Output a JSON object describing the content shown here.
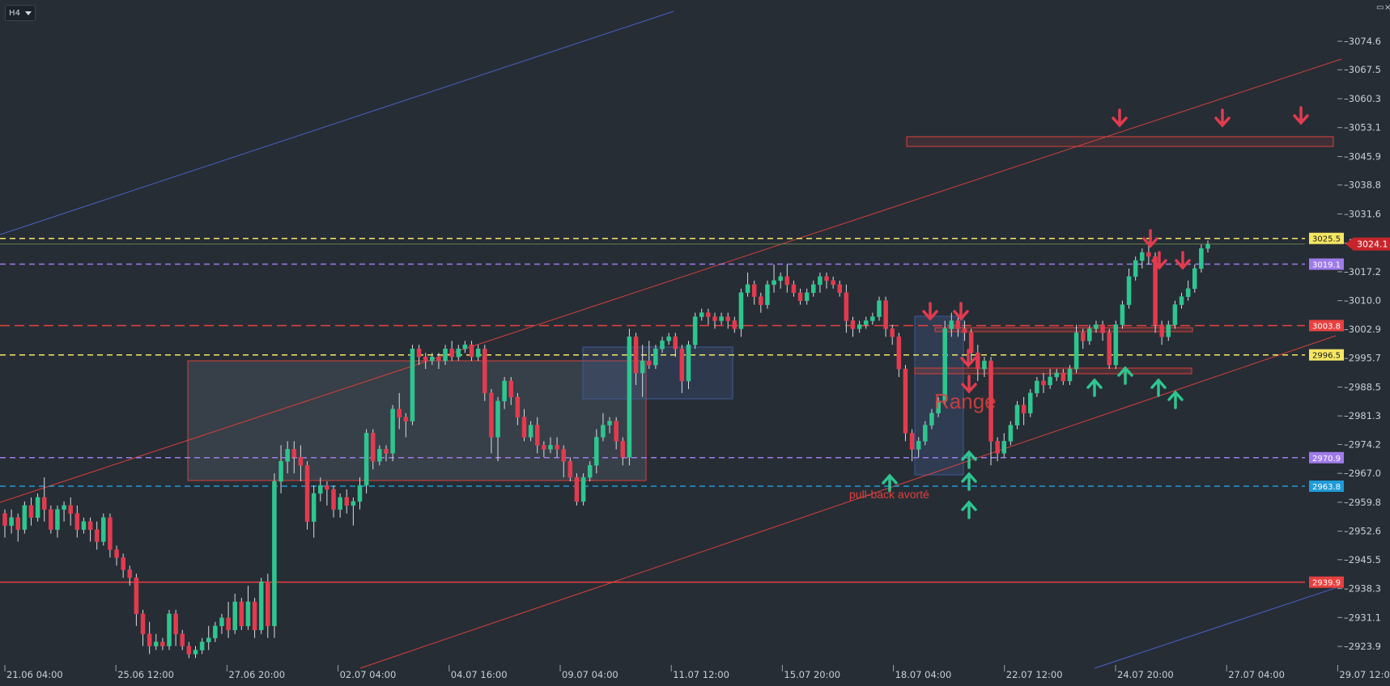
{
  "toolbar": {
    "timeframe": "H4"
  },
  "colors": {
    "background": "#262d35",
    "bull": "#2ec58f",
    "bear": "#e23b4e",
    "yellow_level": "#f5e663",
    "purple_level": "#9f7bea",
    "red_level": "#e8413f",
    "blue_level": "#1f9bd7",
    "channel_red": "#d9403a",
    "trend_blue": "#4a63c8"
  },
  "chart_data": {
    "type": "candlestick",
    "instrument_timeframe": "H4",
    "y_axis": {
      "ticks": [
        "3074.6",
        "3067.5",
        "3060.3",
        "3053.1",
        "3045.9",
        "3038.8",
        "3031.6",
        "3024.4",
        "3017.2",
        "3010.0",
        "3002.9",
        "2995.7",
        "2988.5",
        "2981.3",
        "2974.2",
        "2967.0",
        "2959.8",
        "2952.6",
        "2945.5",
        "2938.3",
        "2931.1",
        "2923.9"
      ],
      "range": [
        2922.5,
        3083.0
      ]
    },
    "x_axis": {
      "tick_labels": [
        "21.06 04:00",
        "25.06 12:00",
        "27.06 20:00",
        "02.07 04:00",
        "04.07 16:00",
        "09.07 04:00",
        "11.07 12:00",
        "15.07 20:00",
        "18.07 04:00",
        "22.07 12:00",
        "24.07 20:00",
        "27.07 04:00",
        "29.07 12:00"
      ]
    },
    "horizontal_levels": [
      {
        "price": 3025.5,
        "label": "3025.5",
        "style": "dashed",
        "color": "#f5e663",
        "label_text_color": "#1a1a1a"
      },
      {
        "price": 3024.1,
        "label": "3024.1",
        "style": "solid-thin",
        "color": "#6e8a4e",
        "label_text_color": "#ffffff",
        "label_bg": "#c8242c"
      },
      {
        "price": 3019.1,
        "label": "3019.1",
        "style": "dashed",
        "color": "#9f7bea",
        "label_text_color": "#ffffff"
      },
      {
        "price": 3003.8,
        "label": "3003.8",
        "style": "dashed",
        "color": "#e8413f",
        "label_text_color": "#ffffff"
      },
      {
        "price": 2996.5,
        "label": "2996.5",
        "style": "dashed",
        "color": "#f5e663",
        "label_text_color": "#1a1a1a"
      },
      {
        "price": 2970.9,
        "label": "2970.9",
        "style": "dashed",
        "color": "#9f7bea",
        "label_text_color": "#ffffff"
      },
      {
        "price": 2963.8,
        "label": "2963.8",
        "style": "dashed",
        "color": "#1f9bd7",
        "label_text_color": "#ffffff"
      },
      {
        "price": 2939.9,
        "label": "2939.9",
        "style": "solid",
        "color": "#e8413f",
        "label_text_color": "#ffffff"
      }
    ],
    "annotations": [
      {
        "text": "Range",
        "color": "#e0403e"
      },
      {
        "text": "pull-back avorté",
        "color": "#e0403e"
      }
    ],
    "candles": [
      [
        2957,
        2954,
        2951,
        2958
      ],
      [
        2954,
        2956,
        2952,
        2958
      ],
      [
        2956,
        2953,
        2950,
        2957
      ],
      [
        2953,
        2959,
        2952,
        2960
      ],
      [
        2959,
        2956,
        2954,
        2961
      ],
      [
        2956,
        2961,
        2955,
        2962
      ],
      [
        2961,
        2958,
        2955,
        2966
      ],
      [
        2958,
        2953,
        2952,
        2959
      ],
      [
        2953,
        2958,
        2951,
        2959
      ],
      [
        2958,
        2959,
        2955,
        2960
      ],
      [
        2959,
        2957,
        2954,
        2961
      ],
      [
        2957,
        2953,
        2951,
        2959
      ],
      [
        2953,
        2955,
        2952,
        2956
      ],
      [
        2955,
        2953,
        2950,
        2956
      ],
      [
        2953,
        2950,
        2948,
        2955
      ],
      [
        2950,
        2956,
        2949,
        2957
      ],
      [
        2956,
        2948,
        2946,
        2957
      ],
      [
        2948,
        2946,
        2944,
        2949
      ],
      [
        2946,
        2943,
        2941,
        2947
      ],
      [
        2943,
        2941,
        2939,
        2944
      ],
      [
        2941,
        2932,
        2929,
        2942
      ],
      [
        2932,
        2927,
        2924,
        2933
      ],
      [
        2927,
        2924,
        2922,
        2930
      ],
      [
        2924,
        2925,
        2923,
        2927
      ],
      [
        2925,
        2924,
        2923,
        2926
      ],
      [
        2924,
        2932,
        2923,
        2933
      ],
      [
        2932,
        2927,
        2924,
        2933
      ],
      [
        2927,
        2924,
        2923,
        2928
      ],
      [
        2924,
        2922,
        2921,
        2925
      ],
      [
        2922,
        2923,
        2921,
        2924
      ],
      [
        2923,
        2925,
        2922,
        2926
      ],
      [
        2925,
        2926,
        2923,
        2929
      ],
      [
        2926,
        2929,
        2925,
        2930
      ],
      [
        2929,
        2931,
        2927,
        2932
      ],
      [
        2931,
        2928,
        2926,
        2935
      ],
      [
        2928,
        2935,
        2927,
        2937
      ],
      [
        2935,
        2929,
        2928,
        2936
      ],
      [
        2929,
        2935,
        2928,
        2939
      ],
      [
        2935,
        2928,
        2926,
        2936
      ],
      [
        2928,
        2940,
        2927,
        2941
      ],
      [
        2940,
        2929,
        2926,
        2942
      ],
      [
        2929,
        2965,
        2926,
        2967
      ],
      [
        2965,
        2970,
        2962,
        2974
      ],
      [
        2970,
        2973,
        2967,
        2975
      ],
      [
        2973,
        2971,
        2967,
        2975
      ],
      [
        2971,
        2969,
        2965,
        2974
      ],
      [
        2969,
        2955,
        2953,
        2970
      ],
      [
        2955,
        2962,
        2951,
        2964
      ],
      [
        2962,
        2964,
        2960,
        2966
      ],
      [
        2964,
        2963,
        2959,
        2965
      ],
      [
        2963,
        2958,
        2956,
        2964
      ],
      [
        2958,
        2961,
        2956,
        2962
      ],
      [
        2961,
        2959,
        2957,
        2963
      ],
      [
        2959,
        2960,
        2954,
        2961
      ],
      [
        2960,
        2964,
        2958,
        2966
      ],
      [
        2964,
        2977,
        2962,
        2978
      ],
      [
        2977,
        2970,
        2968,
        2978
      ],
      [
        2970,
        2973,
        2969,
        2974
      ],
      [
        2973,
        2972,
        2970,
        2974
      ],
      [
        2972,
        2983,
        2970,
        2984
      ],
      [
        2983,
        2981,
        2978,
        2987
      ],
      [
        2981,
        2980,
        2976,
        2982
      ],
      [
        2980,
        2998,
        2979,
        2999
      ],
      [
        2998,
        2996,
        2994,
        2999
      ],
      [
        2996,
        2995,
        2993,
        2997
      ],
      [
        2995,
        2996,
        2994,
        2997
      ],
      [
        2996,
        2995,
        2993,
        2997
      ],
      [
        2995,
        2998,
        2994,
        2999
      ],
      [
        2998,
        2996,
        2995,
        3000
      ],
      [
        2996,
        2998,
        2995,
        2999
      ],
      [
        2998,
        2999,
        2997,
        3000
      ],
      [
        2999,
        2996,
        2995,
        3000
      ],
      [
        2996,
        2998,
        2995,
        2999
      ],
      [
        2998,
        2987,
        2985,
        2999
      ],
      [
        2987,
        2976,
        2972,
        2988
      ],
      [
        2976,
        2985,
        2970,
        2986
      ],
      [
        2985,
        2990,
        2983,
        2991
      ],
      [
        2990,
        2986,
        2984,
        2991
      ],
      [
        2986,
        2981,
        2979,
        2987
      ],
      [
        2981,
        2976,
        2975,
        2983
      ],
      [
        2976,
        2979,
        2975,
        2980
      ],
      [
        2979,
        2974,
        2972,
        2981
      ],
      [
        2974,
        2973,
        2971,
        2975
      ],
      [
        2973,
        2974,
        2972,
        2976
      ],
      [
        2974,
        2973,
        2971,
        2976
      ],
      [
        2973,
        2970,
        2966,
        2974
      ],
      [
        2970,
        2966,
        2965,
        2971
      ],
      [
        2966,
        2960,
        2959,
        2967
      ],
      [
        2960,
        2966,
        2959,
        2967
      ],
      [
        2966,
        2969,
        2965,
        2970
      ],
      [
        2969,
        2976,
        2967,
        2978
      ],
      [
        2976,
        2979,
        2975,
        2982
      ],
      [
        2979,
        2980,
        2977,
        2981
      ],
      [
        2980,
        2975,
        2973,
        2981
      ],
      [
        2975,
        2971,
        2969,
        2976
      ],
      [
        2971,
        3001,
        2969,
        3003
      ],
      [
        3001,
        2992,
        2989,
        3002
      ],
      [
        2992,
        2995,
        2986,
        2999
      ],
      [
        2995,
        2994,
        2993,
        3000
      ],
      [
        2994,
        2998,
        2993,
        2999
      ],
      [
        2998,
        3000,
        2997,
        3001
      ],
      [
        3000,
        3001,
        2999,
        3002
      ],
      [
        3001,
        2998,
        2996,
        3002
      ],
      [
        2998,
        2990,
        2987,
        2999
      ],
      [
        2990,
        2999,
        2988,
        3000
      ],
      [
        2999,
        3006,
        2998,
        3007
      ],
      [
        3006,
        3007,
        3005,
        3008
      ],
      [
        3007,
        3006,
        3004,
        3008
      ],
      [
        3006,
        3005,
        3003,
        3007
      ],
      [
        3005,
        3006,
        3004,
        3007
      ],
      [
        3006,
        3005,
        3003,
        3007
      ],
      [
        3005,
        3003,
        3002,
        3006
      ],
      [
        3003,
        3012,
        3001,
        3013
      ],
      [
        3012,
        3014,
        3011,
        3017
      ],
      [
        3014,
        3011,
        3009,
        3015
      ],
      [
        3011,
        3009,
        3007,
        3012
      ],
      [
        3009,
        3014,
        3008,
        3015
      ],
      [
        3014,
        3015,
        3012,
        3019
      ],
      [
        3015,
        3016,
        3013,
        3017
      ],
      [
        3016,
        3014,
        3012,
        3019
      ],
      [
        3014,
        3012,
        3011,
        3015
      ],
      [
        3012,
        3010,
        3009,
        3013
      ],
      [
        3010,
        3012,
        3009,
        3013
      ],
      [
        3012,
        3014,
        3011,
        3015
      ],
      [
        3014,
        3016,
        3012,
        3017
      ],
      [
        3016,
        3015,
        3013,
        3017
      ],
      [
        3015,
        3014,
        3013,
        3016
      ],
      [
        3014,
        3012,
        3011,
        3015
      ],
      [
        3012,
        3005,
        3002,
        3014
      ],
      [
        3005,
        3003,
        3001,
        3006
      ],
      [
        3003,
        3004,
        3002,
        3005
      ],
      [
        3004,
        3005,
        3003,
        3006
      ],
      [
        3005,
        3006,
        3004,
        3007
      ],
      [
        3006,
        3010,
        3005,
        3011
      ],
      [
        3010,
        3003,
        3001,
        3011
      ],
      [
        3003,
        3001,
        2999,
        3004
      ],
      [
        3001,
        2993,
        2991,
        3002
      ],
      [
        2993,
        2977,
        2975,
        2994
      ],
      [
        2977,
        2973,
        2970,
        2978
      ],
      [
        2973,
        2975,
        2971,
        2976
      ],
      [
        2975,
        2979,
        2974,
        2980
      ],
      [
        2979,
        2982,
        2978,
        2983
      ],
      [
        2982,
        2985,
        2981,
        2986
      ],
      [
        2985,
        3003,
        2984,
        3005
      ],
      [
        3003,
        3005,
        3001,
        3007
      ],
      [
        3005,
        3003,
        3001,
        3006
      ],
      [
        3003,
        3002,
        3000,
        3005
      ],
      [
        3002,
        2997,
        2995,
        3003
      ],
      [
        2997,
        2993,
        2990,
        2999
      ],
      [
        2993,
        2995,
        2991,
        2996
      ],
      [
        2995,
        2975,
        2969,
        2996
      ],
      [
        2975,
        2972,
        2970,
        2976
      ],
      [
        2972,
        2975,
        2971,
        2977
      ],
      [
        2975,
        2979,
        2974,
        2980
      ],
      [
        2979,
        2984,
        2978,
        2985
      ],
      [
        2984,
        2982,
        2979,
        2986
      ],
      [
        2982,
        2987,
        2981,
        2988
      ],
      [
        2987,
        2990,
        2986,
        2991
      ],
      [
        2990,
        2989,
        2987,
        2992
      ],
      [
        2989,
        2991,
        2988,
        2993
      ],
      [
        2991,
        2992,
        2990,
        2993
      ],
      [
        2992,
        2990,
        2989,
        2993
      ],
      [
        2990,
        2993,
        2989,
        2994
      ],
      [
        2993,
        3002,
        2992,
        3004
      ],
      [
        3002,
        3000,
        2998,
        3003
      ],
      [
        3000,
        3003,
        2999,
        3004
      ],
      [
        3003,
        3004,
        3002,
        3005
      ],
      [
        3004,
        3002,
        3000,
        3005
      ],
      [
        3002,
        2994,
        2993,
        3003
      ],
      [
        2994,
        3004,
        2993,
        3005
      ],
      [
        3004,
        3009,
        3003,
        3010
      ],
      [
        3009,
        3016,
        3008,
        3018
      ],
      [
        3016,
        3020,
        3015,
        3021
      ],
      [
        3020,
        3022,
        3018,
        3023
      ],
      [
        3022,
        3021,
        3019,
        3024
      ],
      [
        3021,
        3004,
        3002,
        3022
      ],
      [
        3004,
        3001,
        2999,
        3005
      ],
      [
        3001,
        3004,
        3000,
        3005
      ],
      [
        3004,
        3009,
        3003,
        3010
      ],
      [
        3009,
        3011,
        3008,
        3012
      ],
      [
        3011,
        3013,
        3010,
        3015
      ],
      [
        3013,
        3018,
        3012,
        3019
      ],
      [
        3018,
        3023,
        3017,
        3024
      ],
      [
        3023,
        3024,
        3022,
        3025
      ]
    ]
  }
}
